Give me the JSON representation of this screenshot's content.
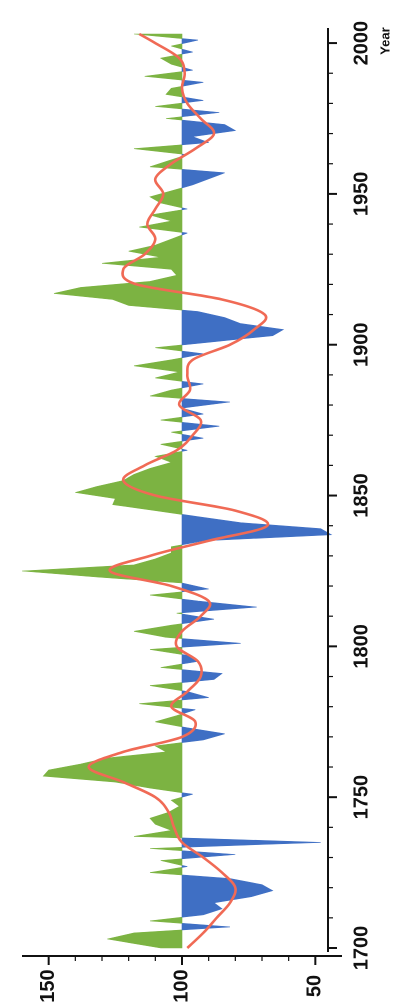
{
  "chart_data": {
    "type": "area",
    "orientation": "rotated-90-ccw",
    "xlabel": "Year",
    "ylabel": "",
    "xlim": [
      1700,
      2005
    ],
    "ylim": [
      40,
      160
    ],
    "baseline": 100,
    "x_ticks": [
      1700,
      1750,
      1800,
      1850,
      1900,
      1950,
      2000
    ],
    "x_tick_labels": [
      "1700",
      "1750",
      "1800",
      "1850",
      "1900",
      "1950",
      "2000"
    ],
    "y_ticks": [
      150,
      100,
      50
    ],
    "y_tick_labels": [
      "150",
      "100",
      "50"
    ],
    "grid": false,
    "legend": "none",
    "colors": {
      "above_baseline": "#7cb342",
      "below_baseline": "#3f6fc4",
      "smooth": "#f06a55",
      "axis": "#111111"
    },
    "series": [
      {
        "values_kind": "annual",
        "x": [
          1700,
          1703,
          1705,
          1707,
          1709,
          1711,
          1713,
          1715,
          1717,
          1719,
          1721,
          1723,
          1725,
          1727,
          1729,
          1731,
          1733,
          1735,
          1737,
          1739,
          1741,
          1743,
          1745,
          1747,
          1749,
          1751,
          1753,
          1755,
          1757,
          1759,
          1761,
          1763,
          1765,
          1767,
          1769,
          1771,
          1773,
          1775,
          1777,
          1779,
          1781,
          1783,
          1785,
          1787,
          1789,
          1791,
          1793,
          1795,
          1797,
          1799,
          1801,
          1803,
          1805,
          1807,
          1809,
          1811,
          1813,
          1815,
          1817,
          1819,
          1821,
          1823,
          1825,
          1827,
          1829,
          1831,
          1833,
          1835,
          1837,
          1839,
          1841,
          1843,
          1845,
          1847,
          1849,
          1851,
          1853,
          1855,
          1857,
          1859,
          1861,
          1863,
          1865,
          1867,
          1869,
          1871,
          1873,
          1875,
          1877,
          1879,
          1881,
          1883,
          1885,
          1887,
          1889,
          1891,
          1893,
          1895,
          1897,
          1899,
          1901,
          1903,
          1905,
          1907,
          1909,
          1911,
          1913,
          1915,
          1917,
          1919,
          1921,
          1923,
          1925,
          1927,
          1929,
          1931,
          1933,
          1935,
          1937,
          1939,
          1941,
          1943,
          1945,
          1947,
          1949,
          1951,
          1953,
          1955,
          1957,
          1959,
          1961,
          1963,
          1965,
          1967,
          1969,
          1971,
          1973,
          1975,
          1977,
          1979,
          1981,
          1983,
          1985,
          1987,
          1989,
          1991,
          1993,
          1995,
          1997,
          1999,
          2001,
          2003
        ],
        "values": [
          108,
          128,
          118,
          82,
          112,
          92,
          85,
          88,
          74,
          66,
          70,
          82,
          112,
          98,
          108,
          80,
          112,
          48,
          118,
          104,
          110,
          112,
          105,
          101,
          104,
          96,
          112,
          125,
          152,
          150,
          138,
          128,
          106,
          110,
          92,
          84,
          98,
          110,
          102,
          95,
          116,
          90,
          98,
          112,
          88,
          85,
          108,
          94,
          98,
          112,
          78,
          106,
          118,
          104,
          88,
          102,
          72,
          94,
          112,
          90,
          100,
          132,
          160,
          118,
          110,
          104,
          104,
          92,
          44,
          48,
          78,
          94,
          110,
          126,
          125,
          140,
          132,
          122,
          118,
          112,
          104,
          110,
          98,
          108,
          92,
          104,
          86,
          108,
          92,
          100,
          82,
          112,
          104,
          92,
          110,
          101,
          118,
          104,
          92,
          110,
          88,
          66,
          62,
          78,
          84,
          94,
          120,
          126,
          148,
          138,
          112,
          102,
          104,
          130,
          108,
          120,
          110,
          104,
          98,
          116,
          104,
          112,
          98,
          108,
          112,
          104,
          96,
          90,
          84,
          112,
          105,
          98,
          118,
          90,
          96,
          80,
          84,
          106,
          86,
          110,
          92,
          106,
          104,
          92,
          114,
          96,
          104,
          108,
          96,
          104,
          94,
          118
        ]
      },
      {
        "values_kind": "smoothed",
        "x": [
          1700,
          1705,
          1710,
          1715,
          1720,
          1725,
          1730,
          1735,
          1740,
          1745,
          1750,
          1755,
          1760,
          1765,
          1770,
          1775,
          1780,
          1785,
          1790,
          1795,
          1800,
          1805,
          1810,
          1815,
          1820,
          1825,
          1830,
          1835,
          1840,
          1845,
          1850,
          1855,
          1860,
          1865,
          1870,
          1875,
          1880,
          1885,
          1890,
          1895,
          1900,
          1905,
          1910,
          1915,
          1920,
          1925,
          1930,
          1935,
          1940,
          1945,
          1950,
          1955,
          1960,
          1965,
          1970,
          1975,
          1980,
          1985,
          1990,
          1995,
          2000,
          2003
        ],
        "values": [
          98,
          92,
          87,
          82,
          80,
          85,
          92,
          100,
          103,
          105,
          110,
          122,
          135,
          122,
          100,
          95,
          104,
          98,
          93,
          94,
          102,
          100,
          93,
          90,
          104,
          127,
          112,
          90,
          68,
          80,
          110,
          122,
          114,
          102,
          96,
          93,
          101,
          97,
          98,
          96,
          82,
          73,
          69,
          85,
          117,
          122,
          114,
          110,
          113,
          110,
          107,
          110,
          104,
          95,
          88,
          93,
          98,
          100,
          99,
          101,
          110,
          116
        ]
      }
    ]
  }
}
